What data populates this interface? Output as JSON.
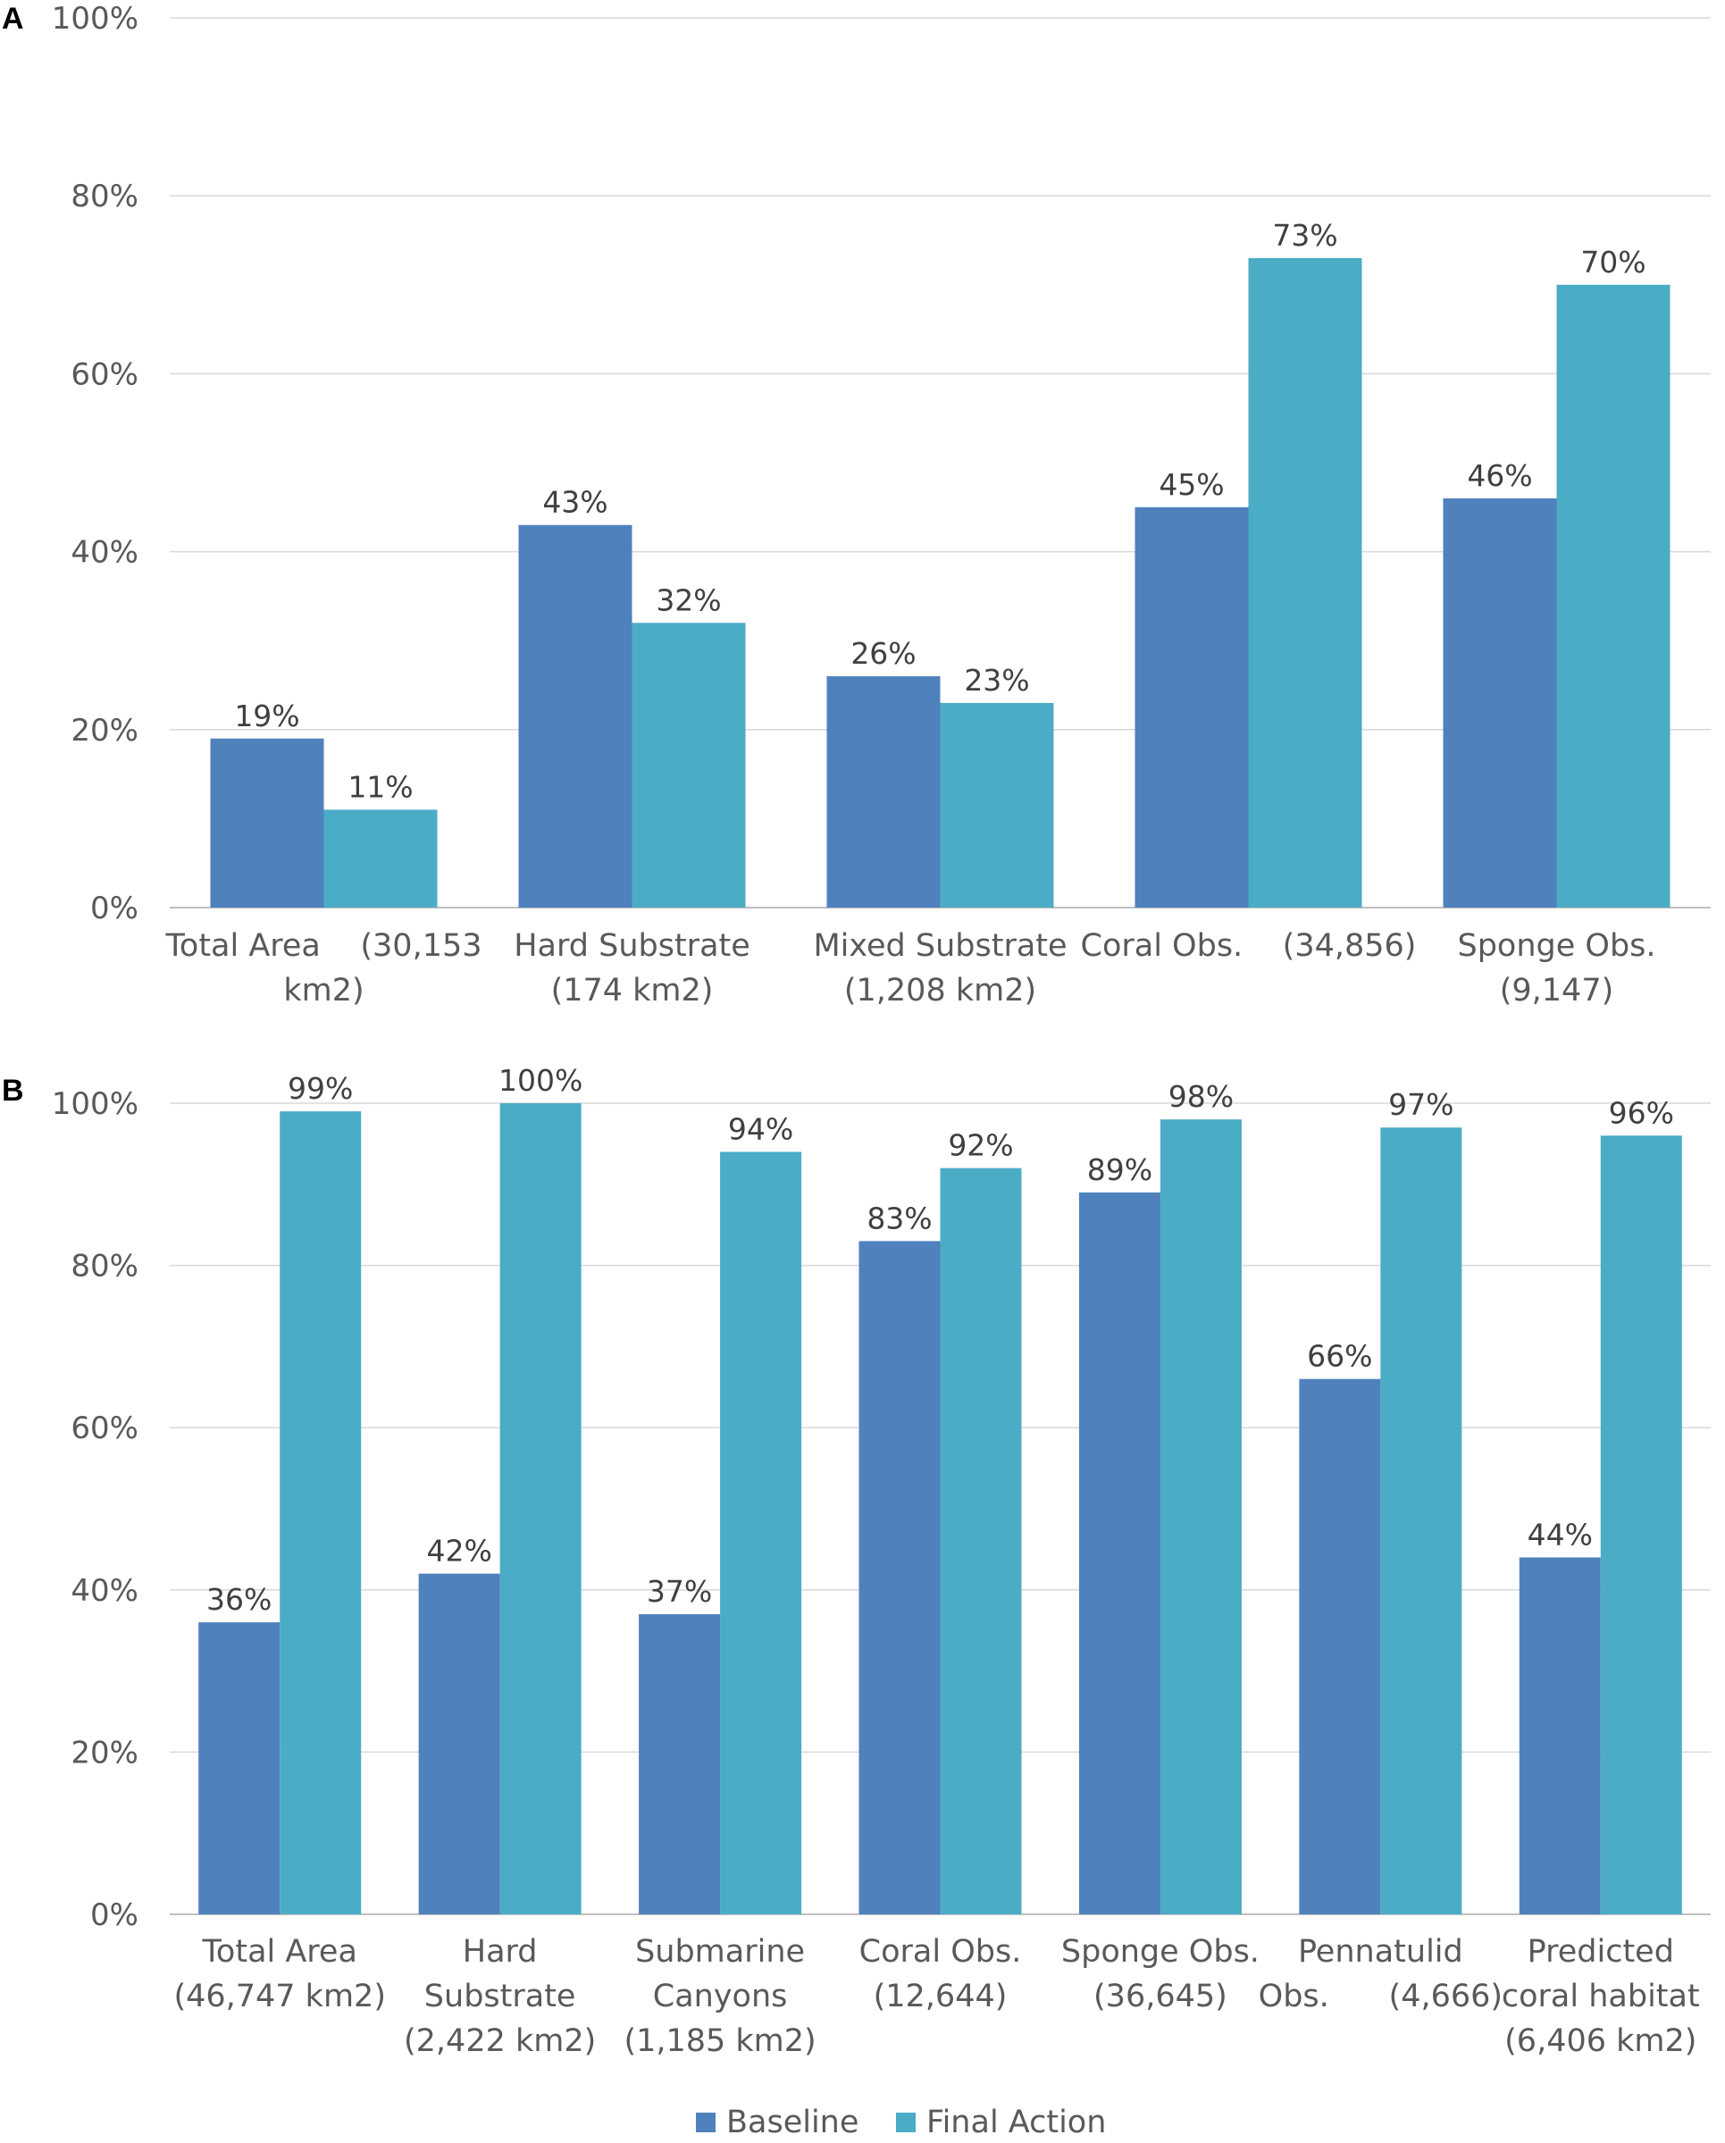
{
  "chart_data": [
    {
      "panel": "A",
      "type": "bar",
      "categories": [
        [
          "Total Area    (30,153",
          "km2)"
        ],
        [
          "Hard Substrate",
          "(174 km2)"
        ],
        [
          "Mixed Substrate",
          "(1,208 km2)"
        ],
        [
          "Coral Obs.    (34,856)"
        ],
        [
          "Sponge Obs.",
          "(9,147)"
        ]
      ],
      "series": [
        {
          "name": "Baseline",
          "color": "#4f81bd",
          "values": [
            19,
            43,
            26,
            45,
            46
          ]
        },
        {
          "name": "Final Action",
          "color": "#4bacc6",
          "values": [
            11,
            32,
            23,
            73,
            70
          ]
        }
      ],
      "yticks": [
        "0%",
        "20%",
        "40%",
        "60%",
        "80%",
        "100%"
      ],
      "ylim": [
        0,
        100
      ],
      "grid": true
    },
    {
      "panel": "B",
      "type": "bar",
      "categories": [
        [
          "Total Area",
          "(46,747 km2)"
        ],
        [
          "Hard",
          "Substrate",
          "(2,422 km2)"
        ],
        [
          "Submarine",
          "Canyons",
          "(1,185 km2)"
        ],
        [
          "Coral Obs.",
          "(12,644)"
        ],
        [
          "Sponge Obs.",
          "(36,645)"
        ],
        [
          "Pennatulid",
          "Obs.      (4,666)"
        ],
        [
          "Predicted",
          "coral habitat",
          "(6,406 km2)"
        ]
      ],
      "series": [
        {
          "name": "Baseline",
          "color": "#4f81bd",
          "values": [
            36,
            42,
            37,
            83,
            89,
            66,
            44
          ]
        },
        {
          "name": "Final Action",
          "color": "#4bacc6",
          "values": [
            99,
            100,
            94,
            92,
            98,
            97,
            96
          ]
        }
      ],
      "yticks": [
        "0%",
        "20%",
        "40%",
        "60%",
        "80%",
        "100%"
      ],
      "ylim": [
        0,
        100
      ],
      "grid": true
    }
  ],
  "legend": [
    {
      "label": "Baseline",
      "color": "#4f81bd"
    },
    {
      "label": "Final Action",
      "color": "#4bacc6"
    }
  ]
}
